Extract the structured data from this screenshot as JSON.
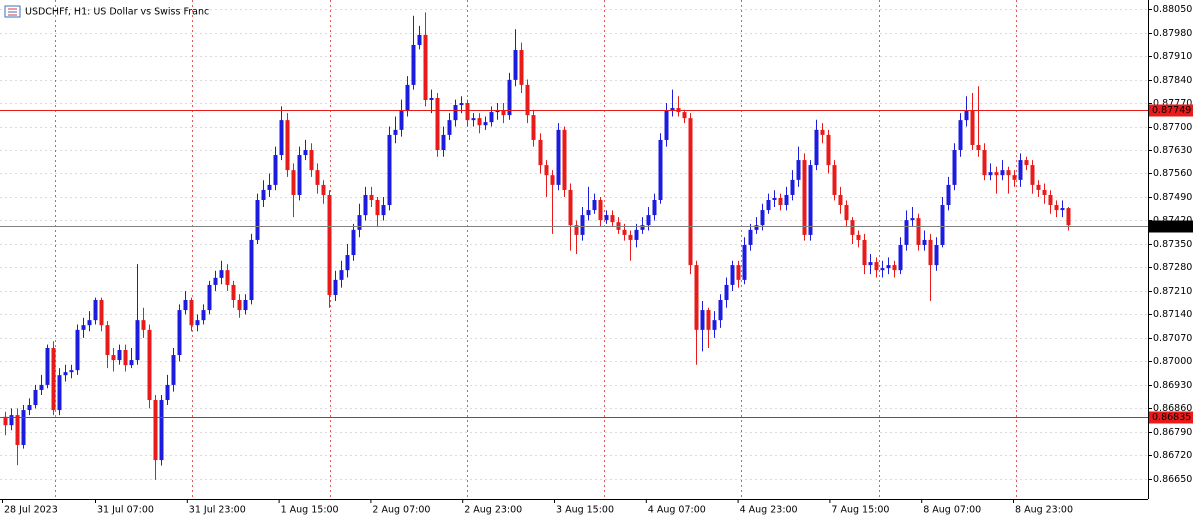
{
  "chart_data": {
    "type": "candlestick",
    "title": "USDCHFf, H1:  US Dollar vs Swiss Franc",
    "bull_color": "#1c1ce0",
    "bear_color": "#e81a1a",
    "grid": true,
    "ylim": [
      0.8659,
      0.88077
    ],
    "yticks": [
      {
        "value": 0.8805,
        "label": "0.88050"
      },
      {
        "value": 0.8798,
        "label": "0.87980"
      },
      {
        "value": 0.8791,
        "label": "0.87910"
      },
      {
        "value": 0.8784,
        "label": "0.87840"
      },
      {
        "value": 0.8777,
        "label": "0.87770"
      },
      {
        "value": 0.877,
        "label": "0.87700"
      },
      {
        "value": 0.8763,
        "label": "0.87630"
      },
      {
        "value": 0.8756,
        "label": "0.87560"
      },
      {
        "value": 0.8749,
        "label": "0.87490"
      },
      {
        "value": 0.8742,
        "label": "0.87420"
      },
      {
        "value": 0.8735,
        "label": "0.87350"
      },
      {
        "value": 0.8728,
        "label": "0.87280"
      },
      {
        "value": 0.8721,
        "label": "0.87210"
      },
      {
        "value": 0.8714,
        "label": "0.87140"
      },
      {
        "value": 0.8707,
        "label": "0.87070"
      },
      {
        "value": 0.87,
        "label": "0.87000"
      },
      {
        "value": 0.8693,
        "label": "0.86930"
      },
      {
        "value": 0.8686,
        "label": "0.86860"
      },
      {
        "value": 0.8679,
        "label": "0.86790"
      },
      {
        "value": 0.8672,
        "label": "0.86720"
      },
      {
        "value": 0.8665,
        "label": "0.86650"
      }
    ],
    "xticks": [
      "28 Jul 2023",
      "31 Jul 07:00",
      "31 Jul 23:00",
      "1 Aug 15:00",
      "2 Aug 07:00",
      "2 Aug 23:00",
      "3 Aug 15:00",
      "4 Aug 07:00",
      "4 Aug 23:00",
      "7 Aug 15:00",
      "8 Aug 07:00",
      "8 Aug 23:00"
    ],
    "price_lines": [
      {
        "value": 0.87749,
        "color": "#e81a1a",
        "label_color": "#e81a1a"
      },
      {
        "value": 0.87405,
        "color": "#808080",
        "label_color": "#000000"
      },
      {
        "value": 0.86835,
        "color": "#e81a1a",
        "label_color": "#e81a1a"
      }
    ],
    "ohlc": [
      [
        0.86835,
        0.8685,
        0.8678,
        0.8681
      ],
      [
        0.8681,
        0.8686,
        0.86795,
        0.8684
      ],
      [
        0.8684,
        0.8686,
        0.86691,
        0.86751
      ],
      [
        0.86751,
        0.8687,
        0.8674,
        0.86855
      ],
      [
        0.86855,
        0.8689,
        0.8684,
        0.8687
      ],
      [
        0.8687,
        0.8693,
        0.8686,
        0.86915
      ],
      [
        0.86915,
        0.8696,
        0.869,
        0.8693
      ],
      [
        0.8693,
        0.8705,
        0.8692,
        0.8704
      ],
      [
        0.8704,
        0.8706,
        0.8684,
        0.86855
      ],
      [
        0.86855,
        0.8698,
        0.8684,
        0.86959
      ],
      [
        0.86959,
        0.8699,
        0.8694,
        0.86968
      ],
      [
        0.86968,
        0.8699,
        0.8695,
        0.86974
      ],
      [
        0.86974,
        0.8711,
        0.8696,
        0.87094
      ],
      [
        0.87094,
        0.8713,
        0.8707,
        0.87108
      ],
      [
        0.87108,
        0.8715,
        0.8709,
        0.87123
      ],
      [
        0.87123,
        0.8719,
        0.8711,
        0.87183
      ],
      [
        0.87183,
        0.8719,
        0.8709,
        0.87108
      ],
      [
        0.87108,
        0.8712,
        0.8698,
        0.87019
      ],
      [
        0.87019,
        0.8704,
        0.8697,
        0.87004
      ],
      [
        0.87004,
        0.8705,
        0.8699,
        0.87034
      ],
      [
        0.87034,
        0.8705,
        0.8697,
        0.86989
      ],
      [
        0.86989,
        0.8704,
        0.8698,
        0.87004
      ],
      [
        0.87004,
        0.8729,
        0.8699,
        0.87123
      ],
      [
        0.87123,
        0.8716,
        0.8707,
        0.87094
      ],
      [
        0.87094,
        0.8711,
        0.8686,
        0.86885
      ],
      [
        0.86885,
        0.869,
        0.86647,
        0.86706
      ],
      [
        0.86706,
        0.869,
        0.8669,
        0.86885
      ],
      [
        0.86885,
        0.8696,
        0.8687,
        0.8693
      ],
      [
        0.8693,
        0.8704,
        0.8691,
        0.87019
      ],
      [
        0.87019,
        0.8717,
        0.87,
        0.87153
      ],
      [
        0.87153,
        0.8721,
        0.8714,
        0.87183
      ],
      [
        0.87183,
        0.8719,
        0.8709,
        0.87108
      ],
      [
        0.87108,
        0.8714,
        0.8709,
        0.87123
      ],
      [
        0.87123,
        0.8717,
        0.8711,
        0.87153
      ],
      [
        0.87153,
        0.8724,
        0.8714,
        0.87228
      ],
      [
        0.87228,
        0.8727,
        0.8721,
        0.87249
      ],
      [
        0.87249,
        0.873,
        0.8723,
        0.87272
      ],
      [
        0.87272,
        0.8729,
        0.8721,
        0.87228
      ],
      [
        0.87228,
        0.8724,
        0.8716,
        0.87183
      ],
      [
        0.87183,
        0.872,
        0.8713,
        0.87153
      ],
      [
        0.87153,
        0.872,
        0.8714,
        0.87183
      ],
      [
        0.87183,
        0.8738,
        0.8717,
        0.87362
      ],
      [
        0.87362,
        0.875,
        0.8735,
        0.87481
      ],
      [
        0.87481,
        0.8754,
        0.8746,
        0.87511
      ],
      [
        0.87511,
        0.8756,
        0.8749,
        0.87526
      ],
      [
        0.87526,
        0.8764,
        0.8751,
        0.87615
      ],
      [
        0.87615,
        0.8776,
        0.876,
        0.87719
      ],
      [
        0.87719,
        0.8774,
        0.8755,
        0.8757
      ],
      [
        0.8757,
        0.8759,
        0.8743,
        0.87496
      ],
      [
        0.87496,
        0.8764,
        0.8748,
        0.87615
      ],
      [
        0.87615,
        0.8766,
        0.876,
        0.8763
      ],
      [
        0.8763,
        0.8765,
        0.8755,
        0.8757
      ],
      [
        0.8757,
        0.8759,
        0.875,
        0.87526
      ],
      [
        0.87526,
        0.8754,
        0.8747,
        0.87496
      ],
      [
        0.87496,
        0.8751,
        0.8716,
        0.87198
      ],
      [
        0.87198,
        0.8727,
        0.8718,
        0.87243
      ],
      [
        0.87243,
        0.873,
        0.8722,
        0.87272
      ],
      [
        0.87272,
        0.8735,
        0.8725,
        0.87317
      ],
      [
        0.87317,
        0.8741,
        0.873,
        0.87392
      ],
      [
        0.87392,
        0.8747,
        0.8737,
        0.87436
      ],
      [
        0.87436,
        0.8752,
        0.8742,
        0.87496
      ],
      [
        0.87496,
        0.8752,
        0.8746,
        0.87481
      ],
      [
        0.87481,
        0.8749,
        0.874,
        0.87436
      ],
      [
        0.87436,
        0.8749,
        0.8742,
        0.87466
      ],
      [
        0.87466,
        0.877,
        0.8745,
        0.87675
      ],
      [
        0.87675,
        0.8773,
        0.8765,
        0.8769
      ],
      [
        0.8769,
        0.8778,
        0.8767,
        0.87749
      ],
      [
        0.87749,
        0.8785,
        0.8773,
        0.87824
      ],
      [
        0.87824,
        0.8803,
        0.8781,
        0.87943
      ],
      [
        0.87943,
        0.88,
        0.8793,
        0.87973
      ],
      [
        0.87973,
        0.8804,
        0.8776,
        0.87779
      ],
      [
        0.87779,
        0.8781,
        0.8774,
        0.87785
      ],
      [
        0.87785,
        0.878,
        0.8761,
        0.8763
      ],
      [
        0.8763,
        0.877,
        0.8761,
        0.87675
      ],
      [
        0.87675,
        0.8774,
        0.8766,
        0.87719
      ],
      [
        0.87719,
        0.8778,
        0.877,
        0.87764
      ],
      [
        0.87764,
        0.8779,
        0.8774,
        0.8777
      ],
      [
        0.8777,
        0.8778,
        0.877,
        0.87719
      ],
      [
        0.87719,
        0.8774,
        0.877,
        0.87725
      ],
      [
        0.87725,
        0.8774,
        0.8768,
        0.87704
      ],
      [
        0.87704,
        0.8773,
        0.8769,
        0.87713
      ],
      [
        0.87713,
        0.8776,
        0.877,
        0.87743
      ],
      [
        0.87743,
        0.8777,
        0.8772,
        0.87749
      ],
      [
        0.87749,
        0.8777,
        0.8771,
        0.87734
      ],
      [
        0.87734,
        0.8786,
        0.8772,
        0.87839
      ],
      [
        0.87839,
        0.8799,
        0.8782,
        0.87928
      ],
      [
        0.87928,
        0.8795,
        0.878,
        0.87824
      ],
      [
        0.87824,
        0.8784,
        0.8771,
        0.87734
      ],
      [
        0.87734,
        0.8775,
        0.8764,
        0.8766
      ],
      [
        0.8766,
        0.8768,
        0.8756,
        0.87585
      ],
      [
        0.87585,
        0.876,
        0.8749,
        0.87555
      ],
      [
        0.87555,
        0.8757,
        0.8738,
        0.87526
      ],
      [
        0.87526,
        0.8771,
        0.8751,
        0.8769
      ],
      [
        0.8769,
        0.877,
        0.8749,
        0.87511
      ],
      [
        0.87511,
        0.8753,
        0.8733,
        0.87406
      ],
      [
        0.87406,
        0.8742,
        0.8732,
        0.87377
      ],
      [
        0.87377,
        0.8746,
        0.8736,
        0.87436
      ],
      [
        0.87436,
        0.8752,
        0.8742,
        0.87451
      ],
      [
        0.87451,
        0.875,
        0.8744,
        0.87481
      ],
      [
        0.87481,
        0.8749,
        0.874,
        0.87421
      ],
      [
        0.87421,
        0.8745,
        0.8741,
        0.87436
      ],
      [
        0.87436,
        0.8745,
        0.874,
        0.87415
      ],
      [
        0.87415,
        0.8743,
        0.8738,
        0.87392
      ],
      [
        0.87392,
        0.8741,
        0.8736,
        0.87377
      ],
      [
        0.87377,
        0.8739,
        0.873,
        0.87362
      ],
      [
        0.87362,
        0.8741,
        0.8734,
        0.87392
      ],
      [
        0.87392,
        0.8743,
        0.8738,
        0.87406
      ],
      [
        0.87406,
        0.8746,
        0.8739,
        0.87436
      ],
      [
        0.87436,
        0.875,
        0.8742,
        0.87481
      ],
      [
        0.87481,
        0.8768,
        0.8747,
        0.8766
      ],
      [
        0.8766,
        0.8777,
        0.8764,
        0.87749
      ],
      [
        0.87749,
        0.8781,
        0.8773,
        0.87755
      ],
      [
        0.87755,
        0.8779,
        0.8773,
        0.87743
      ],
      [
        0.87743,
        0.8775,
        0.8771,
        0.87725
      ],
      [
        0.87725,
        0.8774,
        0.8726,
        0.87287
      ],
      [
        0.87287,
        0.873,
        0.8699,
        0.87094
      ],
      [
        0.87094,
        0.8718,
        0.8703,
        0.87153
      ],
      [
        0.87153,
        0.8716,
        0.8704,
        0.87094
      ],
      [
        0.87094,
        0.8715,
        0.8707,
        0.87123
      ],
      [
        0.87123,
        0.872,
        0.871,
        0.87183
      ],
      [
        0.87183,
        0.8725,
        0.8716,
        0.87228
      ],
      [
        0.87228,
        0.873,
        0.8721,
        0.87287
      ],
      [
        0.87287,
        0.873,
        0.8722,
        0.87243
      ],
      [
        0.87243,
        0.8737,
        0.8723,
        0.87347
      ],
      [
        0.87347,
        0.8741,
        0.8733,
        0.87392
      ],
      [
        0.87392,
        0.8743,
        0.8738,
        0.87406
      ],
      [
        0.87406,
        0.8747,
        0.8739,
        0.87451
      ],
      [
        0.87451,
        0.875,
        0.8744,
        0.87481
      ],
      [
        0.87481,
        0.8751,
        0.8746,
        0.87487
      ],
      [
        0.87487,
        0.875,
        0.8745,
        0.87466
      ],
      [
        0.87466,
        0.8752,
        0.8745,
        0.87496
      ],
      [
        0.87496,
        0.8757,
        0.8748,
        0.87541
      ],
      [
        0.87541,
        0.8764,
        0.8752,
        0.876
      ],
      [
        0.876,
        0.8762,
        0.8736,
        0.87377
      ],
      [
        0.87377,
        0.876,
        0.8736,
        0.87585
      ],
      [
        0.87585,
        0.8772,
        0.8757,
        0.8769
      ],
      [
        0.8769,
        0.8771,
        0.8765,
        0.87675
      ],
      [
        0.87675,
        0.8769,
        0.8756,
        0.87585
      ],
      [
        0.87585,
        0.876,
        0.8748,
        0.87496
      ],
      [
        0.87496,
        0.8752,
        0.8744,
        0.87466
      ],
      [
        0.87466,
        0.8748,
        0.874,
        0.87421
      ],
      [
        0.87421,
        0.8743,
        0.8735,
        0.87377
      ],
      [
        0.87377,
        0.8739,
        0.8734,
        0.87362
      ],
      [
        0.87362,
        0.8738,
        0.8726,
        0.87287
      ],
      [
        0.87287,
        0.8732,
        0.8726,
        0.87296
      ],
      [
        0.87296,
        0.8731,
        0.8725,
        0.87272
      ],
      [
        0.87272,
        0.873,
        0.8725,
        0.87278
      ],
      [
        0.87278,
        0.8731,
        0.8726,
        0.87287
      ],
      [
        0.87287,
        0.873,
        0.8725,
        0.87272
      ],
      [
        0.87272,
        0.8737,
        0.8726,
        0.87347
      ],
      [
        0.87347,
        0.8745,
        0.8733,
        0.87421
      ],
      [
        0.87421,
        0.8746,
        0.874,
        0.87427
      ],
      [
        0.87427,
        0.8744,
        0.8733,
        0.87347
      ],
      [
        0.87347,
        0.8739,
        0.8733,
        0.87362
      ],
      [
        0.87362,
        0.8738,
        0.8718,
        0.87287
      ],
      [
        0.87287,
        0.8737,
        0.8727,
        0.87347
      ],
      [
        0.87347,
        0.8749,
        0.8734,
        0.87466
      ],
      [
        0.87466,
        0.8755,
        0.8745,
        0.87526
      ],
      [
        0.87526,
        0.8765,
        0.8751,
        0.8763
      ],
      [
        0.8763,
        0.8774,
        0.8761,
        0.87719
      ],
      [
        0.87719,
        0.8779,
        0.877,
        0.87749
      ],
      [
        0.87749,
        0.878,
        0.8763,
        0.87645
      ],
      [
        0.87645,
        0.8782,
        0.8761,
        0.8763
      ],
      [
        0.8763,
        0.8765,
        0.8754,
        0.87555
      ],
      [
        0.87555,
        0.8759,
        0.8754,
        0.87564
      ],
      [
        0.87564,
        0.8758,
        0.875,
        0.87555
      ],
      [
        0.87555,
        0.876,
        0.8754,
        0.8757
      ],
      [
        0.8757,
        0.8758,
        0.875,
        0.87555
      ],
      [
        0.87555,
        0.8757,
        0.8752,
        0.87541
      ],
      [
        0.87541,
        0.8762,
        0.8752,
        0.876
      ],
      [
        0.876,
        0.8761,
        0.8757,
        0.87585
      ],
      [
        0.87585,
        0.876,
        0.875,
        0.87526
      ],
      [
        0.87526,
        0.8754,
        0.8749,
        0.87511
      ],
      [
        0.87511,
        0.8753,
        0.8747,
        0.87496
      ],
      [
        0.87496,
        0.8751,
        0.8744,
        0.87466
      ],
      [
        0.87466,
        0.8748,
        0.8743,
        0.87451
      ],
      [
        0.87451,
        0.8748,
        0.8743,
        0.87457
      ],
      [
        0.87457,
        0.8746,
        0.8739,
        0.87406
      ]
    ]
  }
}
